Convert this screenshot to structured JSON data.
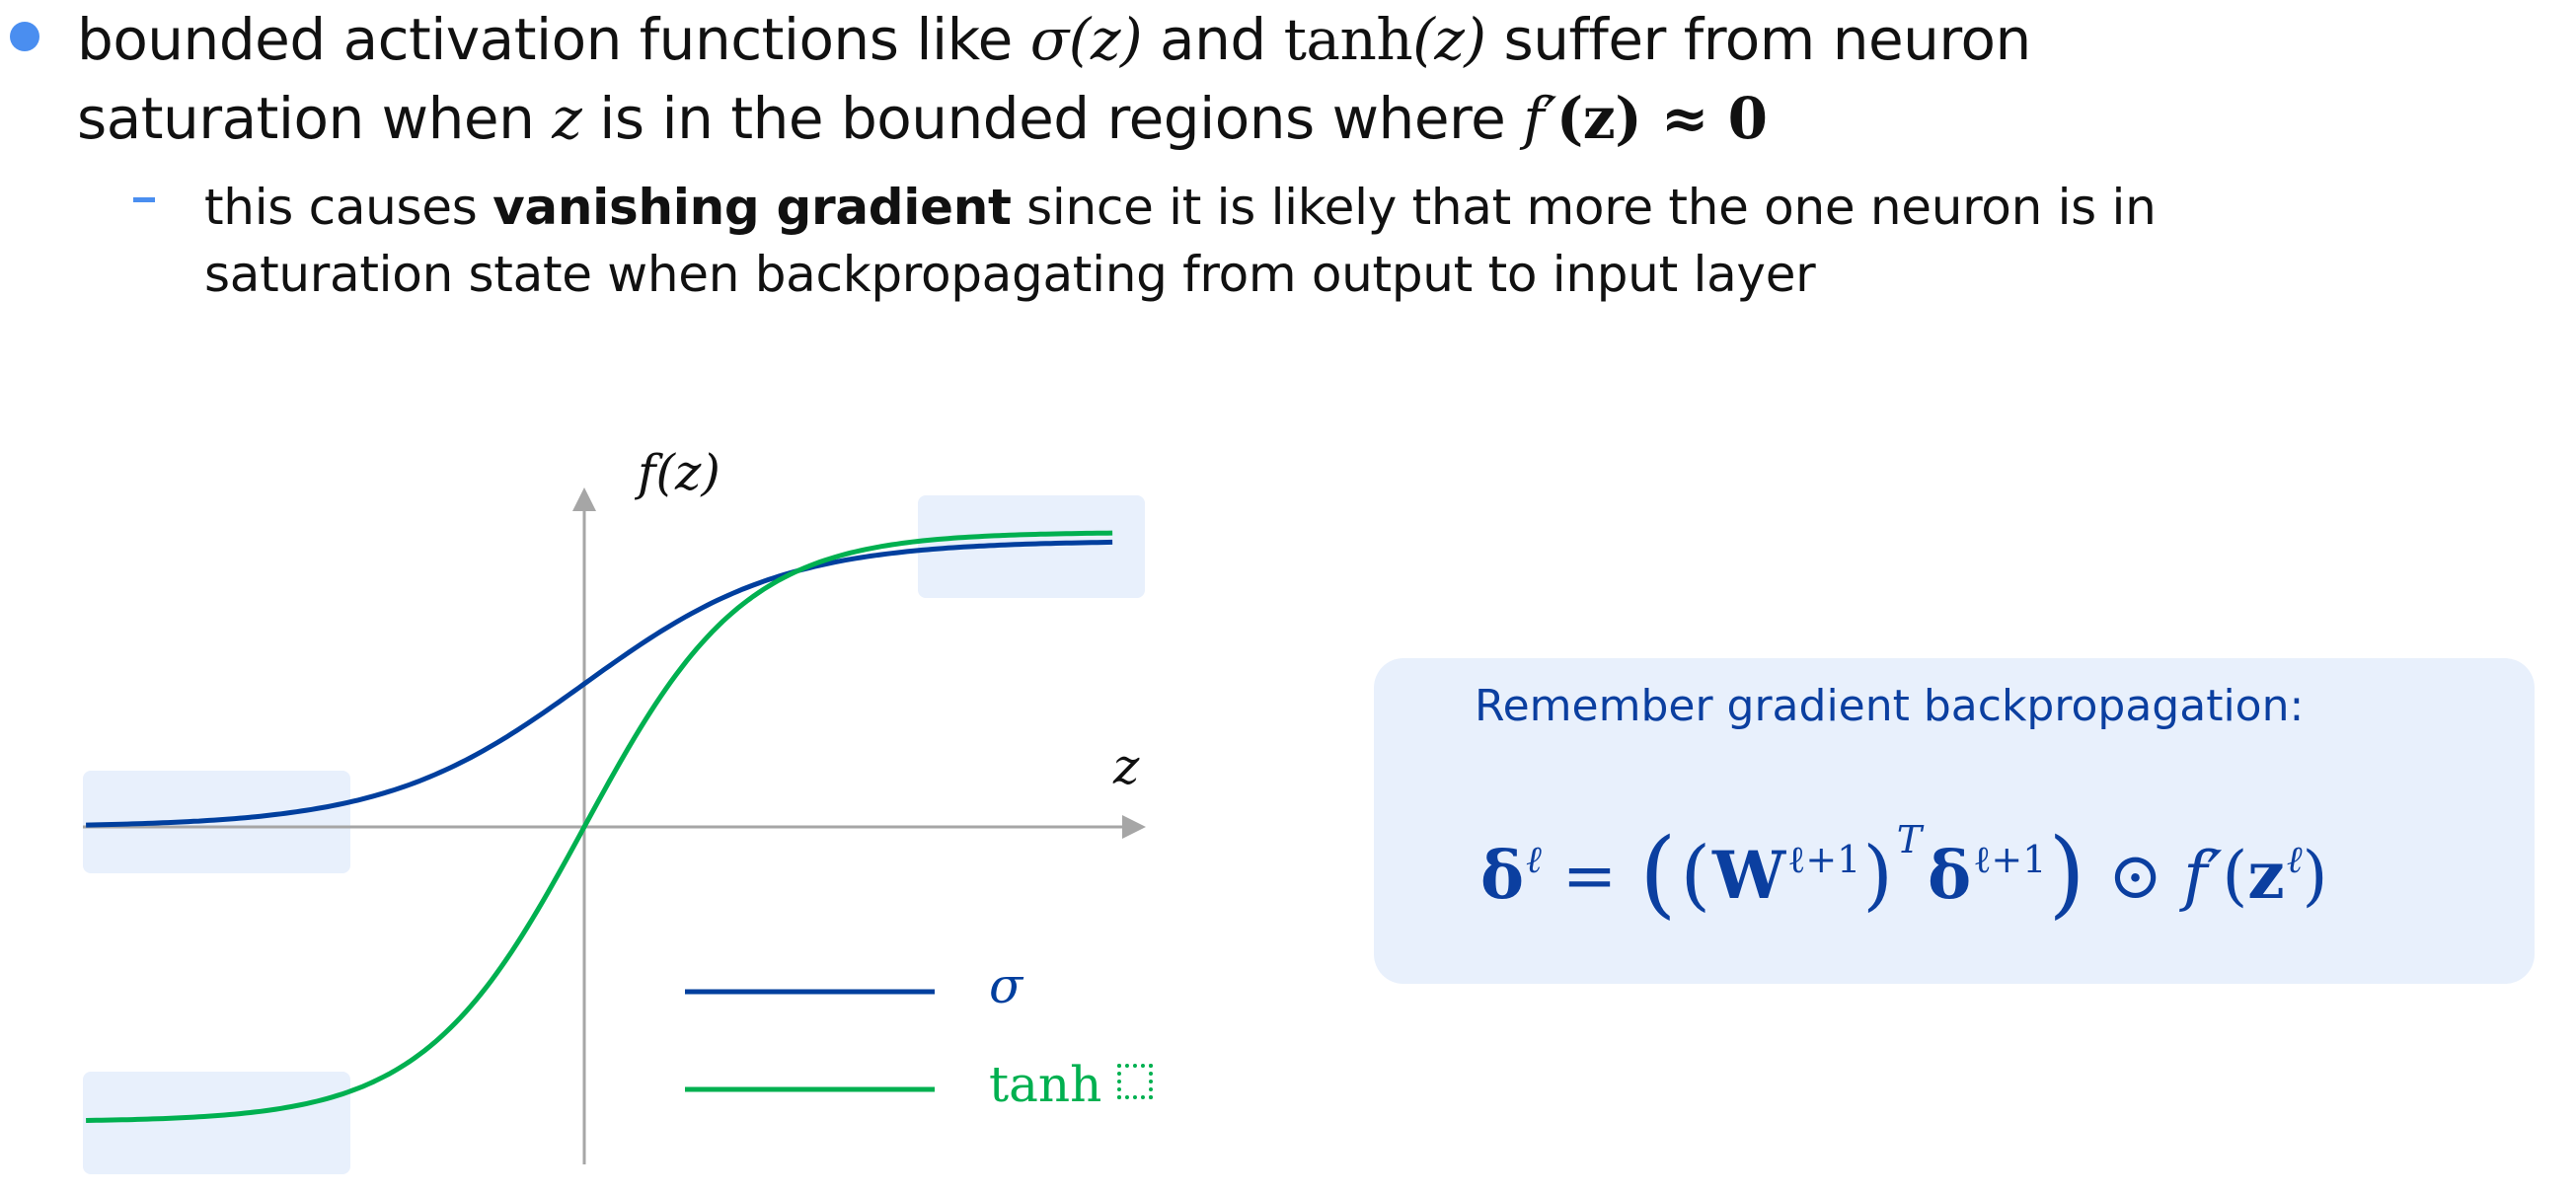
{
  "bullet1": {
    "part1": "bounded activation functions like ",
    "sigma_z": "σ(z)",
    "and": " and ",
    "tanh": "tanh",
    "tanh_arg": "(z)",
    "part2": " suffer from neuron",
    "line2_a": "saturation when ",
    "z": "z",
    "line2_b": " is in the bounded regions where ",
    "fprime": "f′",
    "fprime_arg": "(z)",
    "approx": " ≈ 0"
  },
  "sub_bullet": {
    "prefix": "this causes ",
    "bold": "vanishing gradient",
    "suffix": " since it is likely that more the one neuron is in",
    "line2": "saturation state when backpropagating from output to input layer"
  },
  "plot": {
    "y_label": "f(z)",
    "x_label": "z",
    "legend": [
      {
        "label": "σ",
        "color": "#003f9e"
      },
      {
        "label": "tanh",
        "color": "#00b050"
      }
    ],
    "x_range": [
      -5,
      5.3
    ],
    "y_range": [
      -1,
      1
    ],
    "highlight_color": "#e8f0fc",
    "axis_color": "#a6a6a6"
  },
  "callout": {
    "title": "Remember gradient backpropagation:",
    "formula": {
      "lhs": "δ",
      "ell": "ℓ",
      "eq": " = ",
      "W": "W",
      "lp1": "ℓ+1",
      "T": "T",
      "delta": "δ",
      "odot": " ⊙ ",
      "f": "f′",
      "z": "z"
    },
    "color": "#0b3fa0"
  }
}
